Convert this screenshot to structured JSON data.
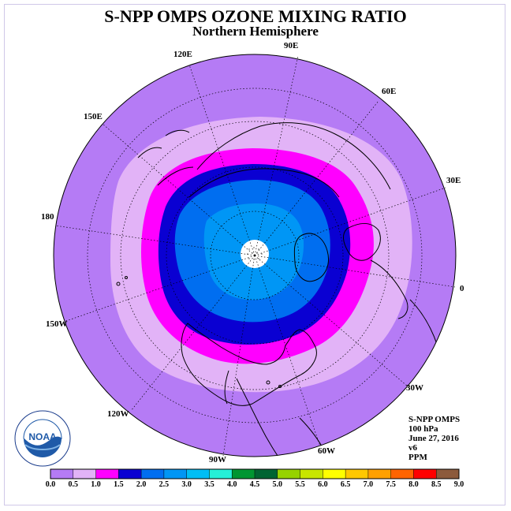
{
  "header": {
    "title": "S-NPP OMPS OZONE MIXING RATIO",
    "subtitle": "Northern Hemisphere"
  },
  "map": {
    "projection": "north polar stereographic",
    "longitude_labels": [
      "90E",
      "60E",
      "30E",
      "0",
      "30W",
      "60W",
      "90W",
      "120W",
      "150W",
      "180",
      "150E",
      "120E"
    ],
    "ocean_color": "#b57bf5",
    "land_outline_color": "#000000"
  },
  "info": {
    "instrument": "S-NPP OMPS",
    "level": "100 hPa",
    "date": "June 27, 2016",
    "version": "v6",
    "units": "PPM"
  },
  "colorbar": {
    "ticks": [
      "0.0",
      "0.5",
      "1.0",
      "1.5",
      "2.0",
      "2.5",
      "3.0",
      "3.5",
      "4.0",
      "4.5",
      "5.0",
      "5.5",
      "6.0",
      "6.5",
      "7.0",
      "7.5",
      "8.0",
      "8.5",
      "9.0"
    ],
    "colors": [
      "#b57bf5",
      "#e2b3f7",
      "#ff00ff",
      "#0a00d2",
      "#006ef0",
      "#0096f5",
      "#00bef5",
      "#25f0d7",
      "#009632",
      "#006432",
      "#96d200",
      "#c8e600",
      "#ffff00",
      "#ffc800",
      "#ffa000",
      "#ff6400",
      "#ff0000",
      "#8c5a3c"
    ]
  },
  "logo": {
    "text": "NOAA",
    "ring_text": "NATIONAL OCEANIC AND ATMOSPHERIC ADMINISTRATION · U.S. DEPARTMENT OF COMMERCE"
  }
}
